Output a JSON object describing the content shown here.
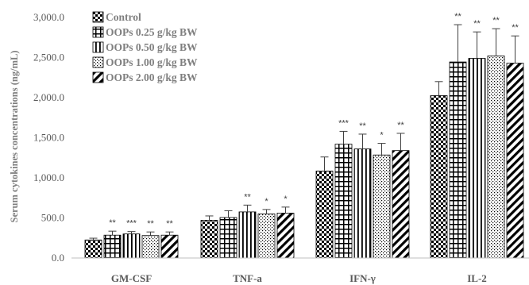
{
  "chart_data": {
    "type": "bar",
    "ylabel": "Serum cytokines concentrations (ng/mL)",
    "ylim": [
      0,
      3000
    ],
    "yticks": [
      "0.0",
      "500.0",
      "1,000.0",
      "1,500.0",
      "2,000.0",
      "2,500.0",
      "3,000.0"
    ],
    "ytick_values": [
      0,
      500,
      1000,
      1500,
      2000,
      2500,
      3000
    ],
    "categories": [
      "GM-CSF",
      "TNF-a",
      "IFN-γ",
      "IL-2"
    ],
    "legend_position": "top-left",
    "grid": false,
    "series": [
      {
        "name": "Control",
        "pattern": "checker",
        "values": [
          225,
          470,
          1085,
          2025
        ],
        "errors": [
          22,
          55,
          175,
          175
        ],
        "significance": [
          "",
          "",
          "",
          ""
        ]
      },
      {
        "name": "OOPs 0.25 g/kg BW",
        "pattern": "grid",
        "values": [
          285,
          505,
          1420,
          2445
        ],
        "errors": [
          50,
          85,
          160,
          465
        ],
        "significance": [
          "**",
          "",
          "***",
          "**"
        ]
      },
      {
        "name": "OOPs 0.50 g/kg BW",
        "pattern": "vertical",
        "values": [
          300,
          575,
          1360,
          2490
        ],
        "errors": [
          30,
          85,
          185,
          330
        ],
        "significance": [
          "***",
          "**",
          "**",
          "**"
        ]
      },
      {
        "name": "OOPs 1.00 g/kg BW",
        "pattern": "dots",
        "values": [
          280,
          550,
          1285,
          2520
        ],
        "errors": [
          45,
          55,
          145,
          340
        ],
        "significance": [
          "**",
          "*",
          "*",
          "**"
        ]
      },
      {
        "name": "OOPs 2.00 g/kg BW",
        "pattern": "diagonal",
        "values": [
          285,
          560,
          1340,
          2430
        ],
        "errors": [
          40,
          75,
          215,
          340
        ],
        "significance": [
          "**",
          "*",
          "**",
          "**"
        ]
      }
    ]
  }
}
